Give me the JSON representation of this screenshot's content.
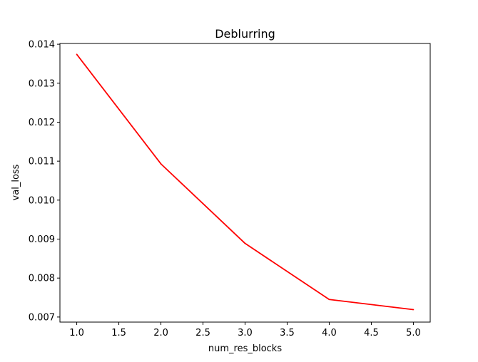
{
  "chart_data": {
    "type": "line",
    "title": "Deblurring",
    "xlabel": "num_res_blocks",
    "ylabel": "val_loss",
    "x": [
      1.0,
      2.0,
      3.0,
      4.0,
      5.0
    ],
    "series": [
      {
        "values": [
          0.01374,
          0.01093,
          0.00889,
          0.00745,
          0.00719
        ],
        "color": "#ff0000"
      }
    ],
    "xlim": [
      0.8,
      5.2
    ],
    "ylim": [
      0.00687,
      0.01402
    ],
    "xticks": [
      "1.0",
      "1.5",
      "2.0",
      "2.5",
      "3.0",
      "3.5",
      "4.0",
      "4.5",
      "5.0"
    ],
    "xtick_values": [
      1.0,
      1.5,
      2.0,
      2.5,
      3.0,
      3.5,
      4.0,
      4.5,
      5.0
    ],
    "yticks": [
      "0.007",
      "0.008",
      "0.009",
      "0.010",
      "0.011",
      "0.012",
      "0.013",
      "0.014"
    ],
    "ytick_values": [
      0.007,
      0.008,
      0.009,
      0.01,
      0.011,
      0.012,
      0.013,
      0.014
    ],
    "grid": false,
    "legend": "none"
  }
}
